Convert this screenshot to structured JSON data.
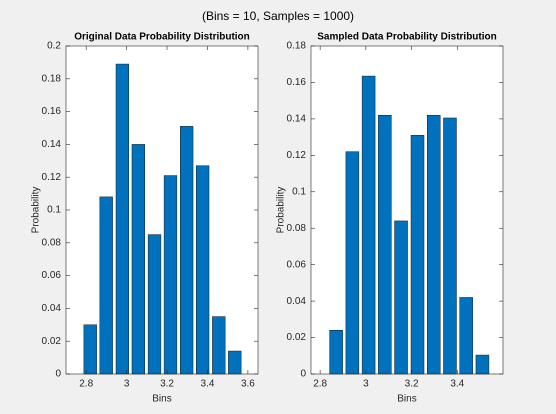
{
  "title": "(Bins = 10, Samples = 1000)",
  "chart_data": [
    {
      "type": "bar",
      "title": "Original Data Probability Distribution",
      "xlabel": "Bins",
      "ylabel": "Probability",
      "x": [
        2.82,
        2.899,
        2.979,
        3.058,
        3.138,
        3.217,
        3.297,
        3.376,
        3.456,
        3.535
      ],
      "values": [
        0.03,
        0.108,
        0.189,
        0.14,
        0.085,
        0.121,
        0.151,
        0.127,
        0.035,
        0.014
      ],
      "color": "#0072bd",
      "xlim": [
        2.7,
        3.65
      ],
      "xticks": [
        2.8,
        3,
        3.2,
        3.4,
        3.6
      ],
      "ylim": [
        0,
        0.2
      ],
      "yticks": [
        0,
        0.02,
        0.04,
        0.06,
        0.08,
        0.1,
        0.12,
        0.14,
        0.16,
        0.18,
        0.2
      ]
    },
    {
      "type": "bar",
      "title": "Sampled Data Probability Distribution",
      "xlabel": "Bins",
      "ylabel": "Probability",
      "x": [
        2.87,
        2.941,
        3.012,
        3.083,
        3.154,
        3.226,
        3.297,
        3.368,
        3.439,
        3.51
      ],
      "values": [
        0.024,
        0.122,
        0.1635,
        0.142,
        0.084,
        0.131,
        0.142,
        0.1405,
        0.042,
        0.0104
      ],
      "color": "#0072bd",
      "xlim": [
        2.76,
        3.6
      ],
      "xticks": [
        2.8,
        3,
        3.2,
        3.4
      ],
      "ylim": [
        0,
        0.18
      ],
      "yticks": [
        0,
        0.02,
        0.04,
        0.06,
        0.08,
        0.1,
        0.12,
        0.14,
        0.16,
        0.18
      ]
    }
  ]
}
